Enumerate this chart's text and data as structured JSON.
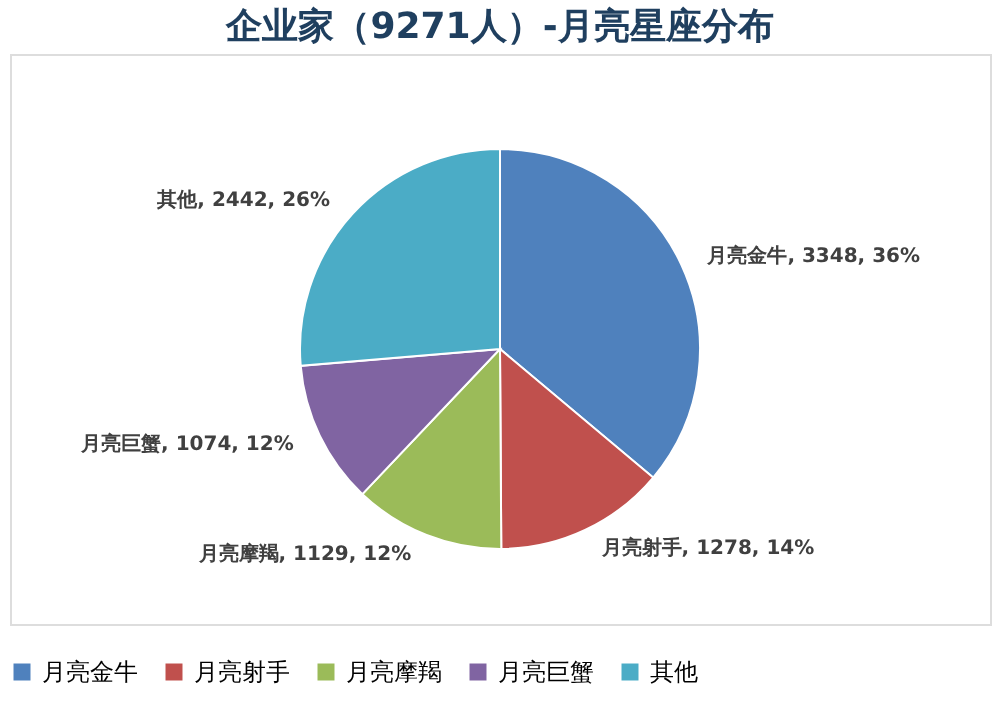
{
  "chart_data": {
    "type": "pie",
    "title": "企业家（9271人）-月亮星座分布",
    "categories": [
      "月亮金牛",
      "月亮射手",
      "月亮摩羯",
      "月亮巨蟹",
      "其他"
    ],
    "values": [
      3348,
      1278,
      1129,
      1074,
      2442
    ],
    "colors": [
      "#4f81bd",
      "#c0504d",
      "#9bbb59",
      "#8064a2",
      "#4bacc6"
    ],
    "value_labels": [
      "月亮金牛, 3348, 36%",
      "月亮射手, 1278, 14%",
      "月亮摩羯, 1129, 12%",
      "月亮巨蟹, 1074, 12%",
      "其他, 2442, 26%"
    ],
    "legend": "bottom"
  }
}
